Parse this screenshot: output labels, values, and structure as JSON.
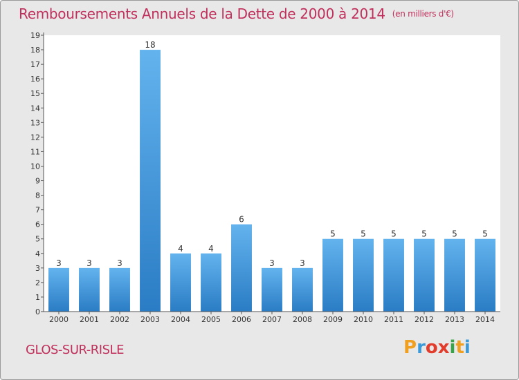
{
  "header": {
    "title": "Remboursements Annuels de la Dette de 2000 à 2014",
    "unit": "(en milliers d'€)"
  },
  "footer": {
    "commune": "GLOS-SUR-RISLE",
    "logo_letters": [
      "P",
      "r",
      "o",
      "x",
      "i",
      "t",
      "i"
    ],
    "logo_colors": [
      "#f0a020",
      "#3a9ad9",
      "#e23c2c",
      "#e23c2c",
      "#3aa34a",
      "#f0a020",
      "#3a9ad9"
    ]
  },
  "colors": {
    "bar_light": "#63b3ee",
    "bar_dark": "#2a7cc4",
    "title": "#c0305c",
    "plot_bg": "#ffffff",
    "frame_bg": "#e8e8e8"
  },
  "chart_data": {
    "type": "bar",
    "title": "Remboursements Annuels de la Dette de 2000 à 2014",
    "subtitle": "(en milliers d'€)",
    "xlabel": "",
    "ylabel": "",
    "categories": [
      "2000",
      "2001",
      "2002",
      "2003",
      "2004",
      "2005",
      "2006",
      "2007",
      "2008",
      "2009",
      "2010",
      "2011",
      "2012",
      "2013",
      "2014"
    ],
    "values": [
      3,
      3,
      3,
      18,
      4,
      4,
      6,
      3,
      3,
      5,
      5,
      5,
      5,
      5,
      5
    ],
    "ylim": [
      0,
      19
    ],
    "yticks": [
      0,
      1,
      2,
      3,
      4,
      5,
      6,
      7,
      8,
      9,
      10,
      11,
      12,
      13,
      14,
      15,
      16,
      17,
      18,
      19
    ],
    "grid": false,
    "data_labels": true
  }
}
